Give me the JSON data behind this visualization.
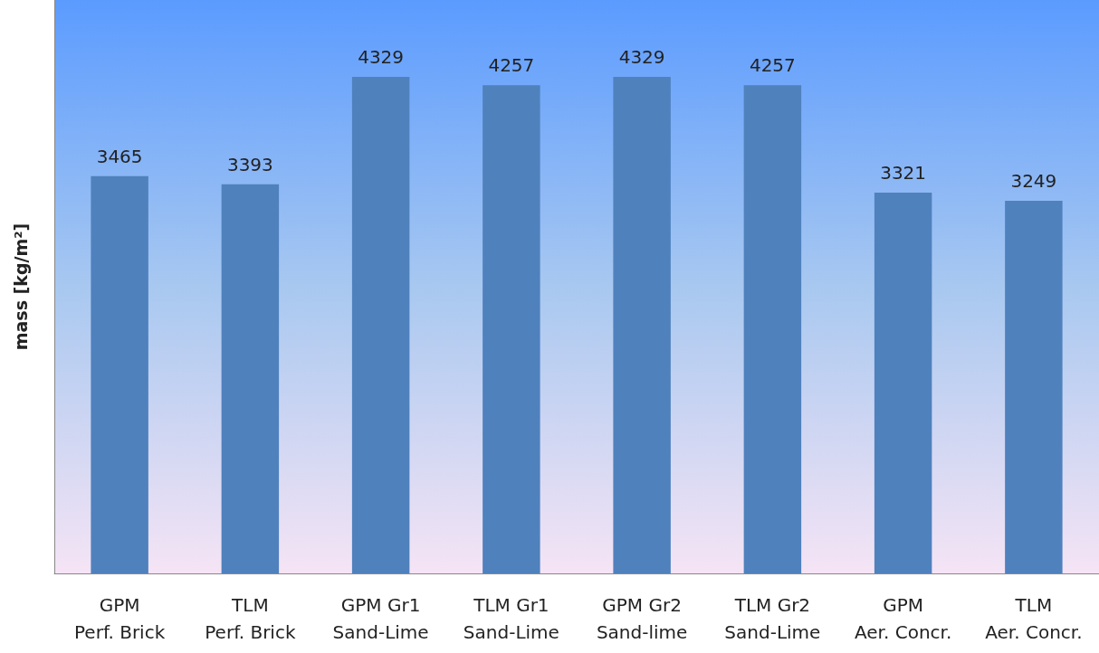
{
  "chart_data": {
    "type": "bar",
    "ylabel": "mass [kg/m²]",
    "categories": [
      "GPM\nPerf. Brick",
      "TLM\nPerf. Brick",
      "GPM Gr1\nSand-Lime",
      "TLM Gr1\nSand-Lime",
      "GPM Gr2\nSand-lime",
      "TLM Gr2\nSand-Lime",
      "GPM\nAer. Concr.",
      "TLM\nAer. Concr."
    ],
    "values": [
      3465,
      3393,
      4329,
      4257,
      4329,
      4257,
      3321,
      3249
    ],
    "color": "#4f81bd",
    "ylim": [
      0,
      5000
    ],
    "data_labels": true,
    "tick_labels": "x"
  }
}
